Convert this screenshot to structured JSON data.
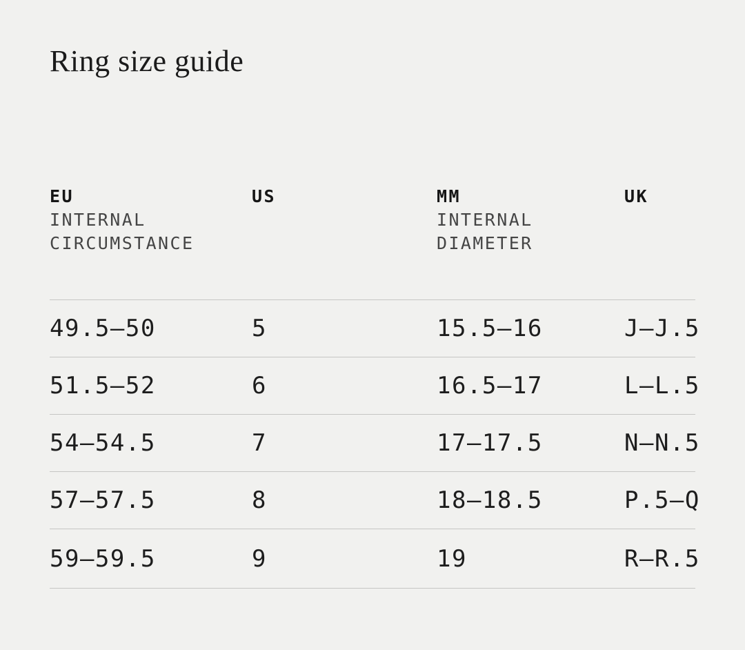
{
  "page": {
    "title": "Ring size guide"
  },
  "table": {
    "columns": [
      {
        "label": "EU",
        "sublabel": "INTERNAL CIRCUMSTANCE"
      },
      {
        "label": "US",
        "sublabel": ""
      },
      {
        "label": "MM",
        "sublabel": "INTERNAL DIAMETER"
      },
      {
        "label": "UK",
        "sublabel": ""
      }
    ],
    "rows": [
      [
        "49.5—50",
        "5",
        "15.5—16",
        "J—J.5"
      ],
      [
        "51.5—52",
        "6",
        "16.5—17",
        "L—L.5"
      ],
      [
        "54—54.5",
        "7",
        "17—17.5",
        "N—N.5"
      ],
      [
        "57—57.5",
        "8",
        "18—18.5",
        "P.5—Q"
      ],
      [
        "59—59.5",
        "9",
        "19",
        "R—R.5"
      ]
    ]
  },
  "colors": {
    "background": "#f1f1ef",
    "text": "#1c1c1c",
    "subheader_text": "#454545",
    "divider": "#c5c5c3"
  }
}
